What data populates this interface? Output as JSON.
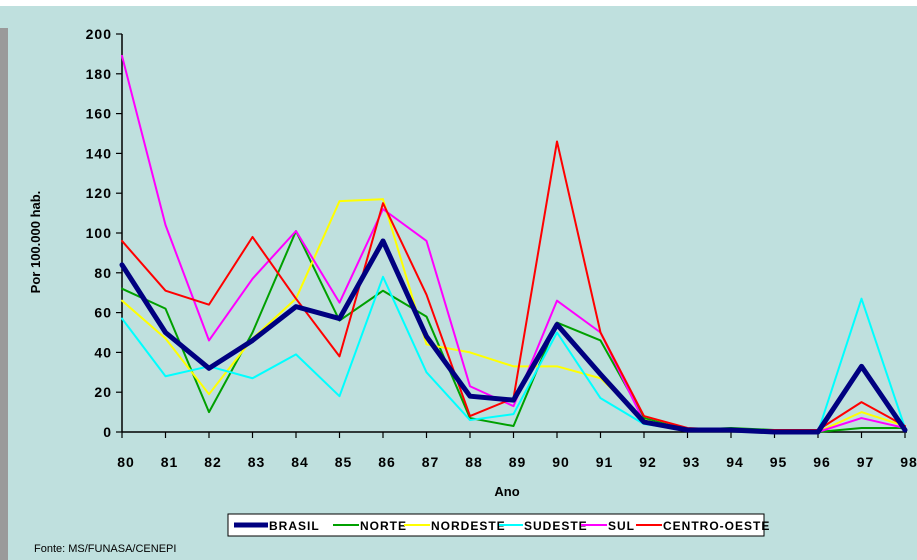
{
  "source_note": "Fonte: MS/FUNASA/CENEPI",
  "chart_data": {
    "type": "line",
    "title": "",
    "xlabel": "Ano",
    "ylabel": "Por 100.000 hab.",
    "ylim": [
      0,
      200
    ],
    "yticks": [
      0,
      20,
      40,
      60,
      80,
      100,
      120,
      140,
      160,
      180,
      200
    ],
    "categories": [
      "80",
      "81",
      "82",
      "83",
      "84",
      "85",
      "86",
      "87",
      "88",
      "89",
      "90",
      "91",
      "92",
      "93",
      "94",
      "95",
      "96",
      "97",
      "98"
    ],
    "legend_position": "bottom",
    "grid": false,
    "series": [
      {
        "name": "NORTE",
        "color": "#00a000",
        "values": [
          72,
          62,
          10,
          50,
          101,
          56,
          71,
          58,
          7,
          3,
          55,
          46,
          7,
          1,
          2,
          1,
          0,
          2,
          2
        ]
      },
      {
        "name": "NORDESTE",
        "color": "#ffff00",
        "values": [
          66,
          47,
          19,
          47,
          67,
          116,
          117,
          44,
          40,
          33,
          33,
          27,
          6,
          1,
          1,
          1,
          0,
          10,
          3
        ]
      },
      {
        "name": "SUDESTE",
        "color": "#00ffff",
        "values": [
          57,
          28,
          33,
          27,
          39,
          18,
          78,
          30,
          6,
          9,
          50,
          17,
          4,
          1,
          1,
          0,
          0,
          67,
          2
        ]
      },
      {
        "name": "SUL",
        "color": "#ff00ff",
        "values": [
          189,
          104,
          46,
          77,
          101,
          65,
          112,
          96,
          23,
          13,
          66,
          50,
          5,
          1,
          1,
          1,
          0,
          7,
          2
        ]
      },
      {
        "name": "CENTRO-OESTE",
        "color": "#ff0000",
        "values": [
          96,
          71,
          64,
          98,
          67,
          38,
          115,
          69,
          8,
          17,
          146,
          50,
          8,
          2,
          1,
          1,
          1,
          15,
          3
        ]
      },
      {
        "name": "BRASIL",
        "color": "#000080",
        "values": [
          84,
          50,
          32,
          46,
          63,
          57,
          96,
          48,
          18,
          16,
          54,
          29,
          5,
          1,
          1,
          0,
          0,
          33,
          1
        ]
      }
    ],
    "legend_order": [
      "BRASIL",
      "NORTE",
      "NORDESTE",
      "SUDESTE",
      "SUL",
      "CENTRO-OESTE"
    ]
  }
}
